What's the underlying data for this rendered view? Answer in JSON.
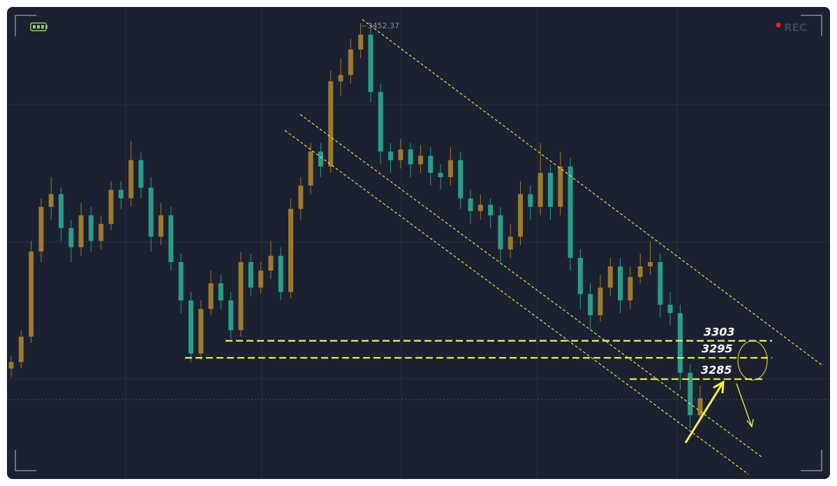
{
  "chart_data": {
    "type": "candlestick",
    "rec_label": "REC",
    "max_label": 3452.37,
    "levels": [
      3303,
      3295,
      3285
    ],
    "up_color": "#9c7a2e",
    "down_color": "#2a9d8a",
    "ylim": [
      3238,
      3460
    ],
    "candles": [
      [
        3290,
        3296,
        3286,
        3293
      ],
      [
        3293,
        3308,
        3290,
        3305
      ],
      [
        3305,
        3350,
        3302,
        3345
      ],
      [
        3345,
        3370,
        3340,
        3366
      ],
      [
        3366,
        3380,
        3360,
        3372
      ],
      [
        3372,
        3375,
        3350,
        3356
      ],
      [
        3356,
        3360,
        3340,
        3347
      ],
      [
        3347,
        3368,
        3343,
        3362
      ],
      [
        3362,
        3366,
        3345,
        3350
      ],
      [
        3350,
        3362,
        3346,
        3358
      ],
      [
        3358,
        3378,
        3355,
        3374
      ],
      [
        3374,
        3378,
        3365,
        3370
      ],
      [
        3370,
        3397,
        3366,
        3388
      ],
      [
        3388,
        3392,
        3370,
        3375
      ],
      [
        3375,
        3380,
        3345,
        3352
      ],
      [
        3352,
        3368,
        3348,
        3362
      ],
      [
        3362,
        3366,
        3336,
        3340
      ],
      [
        3340,
        3344,
        3316,
        3322
      ],
      [
        3322,
        3326,
        3293,
        3297
      ],
      [
        3297,
        3322,
        3294,
        3318
      ],
      [
        3318,
        3336,
        3315,
        3330
      ],
      [
        3330,
        3334,
        3318,
        3322
      ],
      [
        3322,
        3326,
        3304,
        3308
      ],
      [
        3308,
        3345,
        3305,
        3340
      ],
      [
        3340,
        3344,
        3324,
        3328
      ],
      [
        3328,
        3340,
        3325,
        3336
      ],
      [
        3336,
        3350,
        3332,
        3343
      ],
      [
        3343,
        3347,
        3322,
        3326
      ],
      [
        3326,
        3370,
        3323,
        3365
      ],
      [
        3365,
        3380,
        3360,
        3376
      ],
      [
        3376,
        3396,
        3372,
        3392
      ],
      [
        3392,
        3396,
        3380,
        3385
      ],
      [
        3385,
        3430,
        3382,
        3425
      ],
      [
        3425,
        3436,
        3418,
        3428
      ],
      [
        3428,
        3445,
        3424,
        3440
      ],
      [
        3440,
        3452.37,
        3436,
        3447
      ],
      [
        3447,
        3450,
        3415,
        3420
      ],
      [
        3420,
        3424,
        3386,
        3392
      ],
      [
        3392,
        3396,
        3382,
        3388
      ],
      [
        3388,
        3398,
        3384,
        3393
      ],
      [
        3393,
        3396,
        3380,
        3386
      ],
      [
        3386,
        3395,
        3382,
        3390
      ],
      [
        3390,
        3394,
        3376,
        3382
      ],
      [
        3382,
        3386,
        3374,
        3380
      ],
      [
        3380,
        3394,
        3376,
        3388
      ],
      [
        3388,
        3392,
        3365,
        3370
      ],
      [
        3370,
        3374,
        3358,
        3364
      ],
      [
        3364,
        3372,
        3360,
        3367
      ],
      [
        3367,
        3370,
        3356,
        3362
      ],
      [
        3362,
        3366,
        3340,
        3346
      ],
      [
        3346,
        3358,
        3342,
        3352
      ],
      [
        3352,
        3378,
        3348,
        3372
      ],
      [
        3372,
        3376,
        3360,
        3366
      ],
      [
        3366,
        3396,
        3362,
        3382
      ],
      [
        3382,
        3386,
        3360,
        3366
      ],
      [
        3366,
        3392,
        3362,
        3385
      ],
      [
        3385,
        3389,
        3336,
        3342
      ],
      [
        3342,
        3346,
        3318,
        3325
      ],
      [
        3325,
        3330,
        3308,
        3315
      ],
      [
        3315,
        3334,
        3312,
        3328
      ],
      [
        3328,
        3342,
        3324,
        3338
      ],
      [
        3338,
        3342,
        3316,
        3322
      ],
      [
        3322,
        3338,
        3318,
        3333
      ],
      [
        3333,
        3344,
        3330,
        3338
      ],
      [
        3338,
        3350,
        3334,
        3340
      ],
      [
        3340,
        3344,
        3314,
        3320
      ],
      [
        3320,
        3326,
        3310,
        3316
      ],
      [
        3316,
        3320,
        3280,
        3288
      ],
      [
        3288,
        3292,
        3262,
        3268
      ],
      [
        3268,
        3282,
        3265,
        3276
      ]
    ]
  }
}
